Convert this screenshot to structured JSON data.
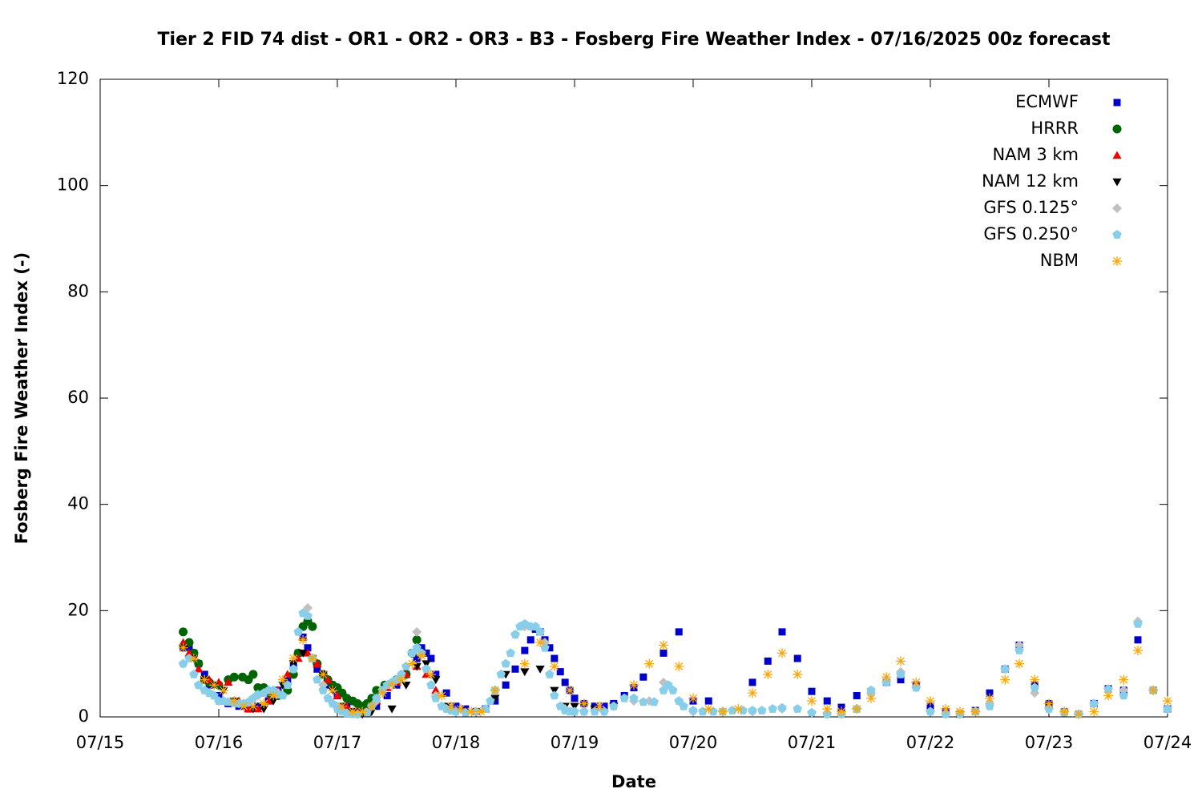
{
  "chart_data": {
    "type": "scatter",
    "title": "Tier 2 FID 74 dist - OR1 - OR2 - OR3 - B3 - Fosberg Fire Weather Index - 07/16/2025 00z forecast",
    "x_label": "Date",
    "y_label": "Fosberg Fire Weather Index (-)",
    "xlim": [
      0,
      9
    ],
    "xticks": [
      {
        "value": 0,
        "label": "07/15"
      },
      {
        "value": 1,
        "label": "07/16"
      },
      {
        "value": 2,
        "label": "07/17"
      },
      {
        "value": 3,
        "label": "07/18"
      },
      {
        "value": 4,
        "label": "07/19"
      },
      {
        "value": 5,
        "label": "07/20"
      },
      {
        "value": 6,
        "label": "07/21"
      },
      {
        "value": 7,
        "label": "07/22"
      },
      {
        "value": 8,
        "label": "07/23"
      },
      {
        "value": 9,
        "label": "07/24"
      }
    ],
    "ylim": [
      0,
      120
    ],
    "yticks": [
      0,
      20,
      40,
      60,
      80,
      100,
      120
    ],
    "legend": "top-right",
    "series": [
      {
        "name": "ECMWF",
        "color": "#0000cc",
        "marker": "square",
        "x": [
          0.7,
          0.75,
          0.79,
          0.83,
          0.88,
          0.92,
          1.0,
          1.08,
          1.17,
          1.25,
          1.33,
          1.42,
          1.5,
          1.58,
          1.63,
          1.67,
          1.71,
          1.75,
          1.79,
          1.83,
          1.92,
          2.0,
          2.08,
          2.17,
          2.25,
          2.33,
          2.42,
          2.5,
          2.58,
          2.67,
          2.71,
          2.75,
          2.79,
          2.83,
          2.92,
          3.0,
          3.08,
          3.17,
          3.25,
          3.33,
          3.42,
          3.5,
          3.58,
          3.63,
          3.67,
          3.71,
          3.75,
          3.79,
          3.83,
          3.88,
          3.92,
          3.96,
          4.0,
          4.08,
          4.17,
          4.25,
          4.33,
          4.42,
          4.5,
          4.58,
          4.75,
          4.88,
          5.0,
          5.13,
          5.5,
          5.63,
          5.75,
          5.88,
          6.0,
          6.13,
          6.25,
          6.38,
          6.5,
          6.63,
          6.75,
          6.88,
          7.0,
          7.13,
          7.25,
          7.38,
          7.5,
          7.63,
          7.75,
          7.88,
          8.0,
          8.13,
          8.25,
          8.38,
          8.5,
          8.63,
          8.75,
          8.88,
          9.0
        ],
        "values": [
          13,
          13,
          12,
          10,
          8,
          6,
          4,
          2.5,
          2,
          1.5,
          2,
          3,
          5,
          7,
          10,
          12,
          15,
          13,
          11,
          9,
          6,
          4,
          2,
          1,
          0.8,
          2,
          4,
          6,
          8,
          11,
          13,
          12,
          11,
          8,
          4.5,
          2,
          1.5,
          1,
          1.5,
          3,
          6,
          9,
          12.5,
          14.5,
          16.5,
          16,
          14.5,
          13,
          11,
          8.5,
          6.5,
          5,
          3.5,
          2.5,
          2,
          2,
          2.5,
          4,
          5.5,
          7.5,
          12,
          16,
          3,
          3,
          6.5,
          10.5,
          16,
          11,
          4.8,
          3,
          1.8,
          4,
          4.8,
          6.5,
          7,
          6,
          2,
          1,
          0.5,
          1.2,
          4.5,
          9,
          13.5,
          6,
          2.5,
          1,
          0.5,
          2.5,
          5.3,
          5,
          14.5,
          5,
          1.5
        ]
      },
      {
        "name": "HRRR",
        "color": "#006400",
        "marker": "circle",
        "x": [
          0.7,
          0.75,
          0.79,
          0.83,
          0.88,
          0.92,
          1.0,
          1.08,
          1.13,
          1.2,
          1.25,
          1.29,
          1.33,
          1.38,
          1.42,
          1.5,
          1.58,
          1.63,
          1.67,
          1.71,
          1.75,
          1.79,
          1.83,
          1.88,
          1.92,
          1.96,
          2.0,
          2.04,
          2.08,
          2.13,
          2.17,
          2.21,
          2.25,
          2.29,
          2.33,
          2.4,
          2.5,
          2.58,
          2.63,
          2.67
        ],
        "values": [
          16,
          14,
          12,
          10,
          7,
          6.5,
          6,
          7,
          7.5,
          7.5,
          7,
          8,
          5.5,
          5.5,
          4.5,
          4,
          5,
          8,
          12,
          17,
          18,
          17,
          10,
          8,
          7,
          6,
          5.5,
          4.5,
          3.5,
          3,
          2.5,
          2,
          2.5,
          3.5,
          5,
          6,
          7,
          8,
          12,
          14.5
        ]
      },
      {
        "name": "NAM 3 km",
        "color": "#ee0000",
        "marker": "triangle-up",
        "x": [
          0.7,
          0.75,
          0.83,
          0.92,
          1.0,
          1.08,
          1.17,
          1.25,
          1.33,
          1.42,
          1.5,
          1.58,
          1.67,
          1.75,
          1.83,
          1.92,
          2.0,
          2.08,
          2.17,
          2.25,
          2.33,
          2.42,
          2.5,
          2.58,
          2.67,
          2.75,
          2.83
        ],
        "values": [
          14,
          12,
          9,
          7,
          6.5,
          6.5,
          3,
          1.5,
          1.5,
          3,
          5,
          8,
          11,
          12,
          10,
          7,
          4,
          2,
          1,
          0.8,
          3,
          5.5,
          6.5,
          8,
          9.5,
          8,
          5
        ]
      },
      {
        "name": "NAM 12 km",
        "color": "#000000",
        "marker": "triangle-down",
        "x": [
          0.7,
          0.79,
          0.88,
          0.96,
          1.04,
          1.13,
          1.21,
          1.29,
          1.38,
          1.46,
          1.54,
          1.63,
          1.71,
          1.79,
          1.88,
          1.96,
          2.04,
          2.13,
          2.21,
          2.29,
          2.46,
          2.58,
          2.67,
          2.75,
          2.83,
          2.92,
          3.0,
          3.17,
          3.33,
          3.42,
          3.58,
          3.71,
          3.83,
          3.92,
          4.0,
          4.17,
          4.33
        ],
        "values": [
          13,
          11,
          7,
          6,
          5,
          3,
          2,
          1.5,
          1.5,
          3,
          6,
          10,
          12,
          11,
          8,
          5,
          2,
          1,
          0.5,
          1,
          1.5,
          6,
          9.5,
          10,
          7,
          2,
          1,
          0.8,
          3.5,
          8,
          8.5,
          9,
          5,
          2,
          2,
          1.5,
          2
        ]
      },
      {
        "name": "GFS 0.125°",
        "color": "#c0c0c0",
        "marker": "diamond",
        "x": [
          0.7,
          0.83,
          1.0,
          1.17,
          1.33,
          1.5,
          1.63,
          1.75,
          1.88,
          2.0,
          2.17,
          2.33,
          2.5,
          2.67,
          2.83,
          3.0,
          3.17,
          3.33,
          3.5,
          3.58,
          3.75,
          3.92,
          4.08,
          4.25,
          4.5,
          4.63,
          4.75,
          4.88,
          5.0,
          5.25,
          5.5,
          5.75,
          6.0,
          6.13,
          6.25,
          6.38,
          6.5,
          6.63,
          6.75,
          6.88,
          7.0,
          7.13,
          7.25,
          7.38,
          7.5,
          7.63,
          7.75,
          7.88,
          8.0,
          8.13,
          8.25,
          8.38,
          8.5,
          8.63,
          8.75,
          8.88,
          9.0
        ],
        "values": [
          10,
          6,
          3,
          2.5,
          4,
          4.5,
          9,
          20.5,
          6,
          2,
          0.5,
          3,
          7,
          16,
          4,
          1,
          1,
          5,
          15.5,
          17,
          14,
          1.5,
          1,
          1,
          3,
          3,
          6.5,
          3,
          1,
          1,
          1,
          1.5,
          0.8,
          0.5,
          0.5,
          1.5,
          4.5,
          6.5,
          8.5,
          5.5,
          1,
          0.5,
          0.5,
          1,
          2.5,
          9,
          13.5,
          4.5,
          1.5,
          1,
          0.5,
          2.5,
          5.3,
          5,
          18,
          5,
          1.5
        ]
      },
      {
        "name": "GFS 0.250°",
        "color": "#87ceeb",
        "marker": "pentagon",
        "x": [
          0.7,
          0.75,
          0.79,
          0.83,
          0.88,
          0.92,
          0.96,
          1.0,
          1.04,
          1.08,
          1.13,
          1.17,
          1.21,
          1.25,
          1.29,
          1.33,
          1.38,
          1.42,
          1.46,
          1.5,
          1.54,
          1.58,
          1.63,
          1.67,
          1.71,
          1.75,
          1.79,
          1.83,
          1.88,
          1.92,
          1.96,
          2.0,
          2.04,
          2.08,
          2.13,
          2.17,
          2.25,
          2.29,
          2.33,
          2.38,
          2.42,
          2.46,
          2.5,
          2.54,
          2.58,
          2.63,
          2.67,
          2.71,
          2.75,
          2.79,
          2.83,
          2.88,
          2.92,
          2.96,
          3.0,
          3.08,
          3.17,
          3.25,
          3.29,
          3.33,
          3.38,
          3.42,
          3.46,
          3.5,
          3.54,
          3.58,
          3.63,
          3.67,
          3.71,
          3.75,
          3.79,
          3.83,
          3.88,
          3.92,
          3.96,
          4.0,
          4.08,
          4.17,
          4.25,
          4.33,
          4.42,
          4.5,
          4.58,
          4.67,
          4.75,
          4.79,
          4.83,
          4.88,
          4.92,
          5.0,
          5.08,
          5.17,
          5.25,
          5.33,
          5.42,
          5.5,
          5.58,
          5.67,
          5.75,
          5.88,
          6.0,
          6.13,
          6.25,
          6.38,
          6.5,
          6.63,
          6.75,
          6.88,
          7.0,
          7.13,
          7.25,
          7.38,
          7.5,
          7.63,
          7.75,
          7.88,
          8.0,
          8.13,
          8.25,
          8.38,
          8.5,
          8.63,
          8.75,
          8.88,
          9.0
        ],
        "values": [
          10,
          11,
          8,
          6,
          5,
          4.5,
          4,
          3,
          3,
          2.8,
          2.6,
          2.5,
          2.5,
          2.8,
          3.5,
          4.2,
          4.5,
          5,
          5,
          4.2,
          4,
          6,
          9,
          16,
          19.5,
          19,
          11,
          7,
          5,
          3.5,
          2.5,
          1.5,
          1,
          0.7,
          0.5,
          0.5,
          0.8,
          2,
          3.5,
          5,
          6,
          6.5,
          7,
          8,
          9.5,
          12,
          13,
          12,
          9,
          6,
          3.5,
          2,
          1.5,
          1.2,
          1,
          0.8,
          1,
          1.5,
          3,
          5,
          8,
          10,
          12,
          15.5,
          17,
          17.5,
          17,
          17,
          16,
          13,
          8,
          4,
          2,
          1.2,
          1,
          1,
          1,
          1,
          1,
          2,
          3.5,
          3.5,
          2.8,
          2.8,
          5,
          6,
          5,
          3,
          2,
          1.2,
          1,
          1,
          1,
          1.2,
          1.2,
          1.2,
          1.2,
          1.5,
          1.7,
          1.5,
          0.8,
          0.5,
          0.5,
          1.5,
          5,
          6.5,
          8,
          5.5,
          1,
          0.5,
          0.5,
          1,
          2,
          9,
          12.5,
          5.5,
          1.5,
          0.8,
          0.5,
          2.5,
          5.2,
          4,
          17.5,
          5,
          1.5
        ]
      },
      {
        "name": "NBM",
        "color": "#ffa500",
        "marker": "star",
        "x": [
          0.7,
          0.79,
          0.88,
          0.96,
          1.04,
          1.13,
          1.21,
          1.29,
          1.38,
          1.46,
          1.54,
          1.63,
          1.71,
          1.79,
          1.88,
          1.96,
          2.04,
          2.13,
          2.21,
          2.29,
          2.38,
          2.46,
          2.54,
          2.63,
          2.71,
          2.79,
          2.88,
          2.96,
          3.04,
          3.13,
          3.21,
          3.33,
          3.58,
          3.71,
          3.83,
          3.96,
          4.08,
          4.21,
          4.5,
          4.63,
          4.75,
          4.88,
          5.0,
          5.13,
          5.25,
          5.38,
          5.5,
          5.63,
          5.75,
          5.88,
          6.0,
          6.13,
          6.25,
          6.38,
          6.5,
          6.63,
          6.75,
          6.88,
          7.0,
          7.13,
          7.25,
          7.38,
          7.5,
          7.63,
          7.75,
          7.88,
          8.0,
          8.13,
          8.25,
          8.38,
          8.5,
          8.63,
          8.75,
          8.88,
          9.0
        ],
        "values": [
          13,
          11,
          7,
          6,
          5,
          3,
          2,
          2,
          2.5,
          4,
          7,
          11,
          14.5,
          11,
          8,
          5,
          2,
          1,
          1,
          2,
          4.5,
          6,
          7,
          10,
          11.5,
          8,
          4,
          2,
          1.5,
          1,
          1,
          5,
          10,
          14,
          9.5,
          5,
          2.5,
          2,
          6,
          10,
          13.5,
          9.5,
          3.5,
          1.5,
          1,
          1.5,
          4.5,
          8,
          12,
          8,
          3,
          1.5,
          1,
          1.5,
          3.5,
          7.5,
          10.5,
          6.5,
          3,
          1.5,
          1,
          1,
          3.5,
          7,
          10,
          7,
          2.5,
          1,
          0.5,
          1,
          4,
          7,
          12.5,
          5,
          3
        ]
      }
    ]
  }
}
